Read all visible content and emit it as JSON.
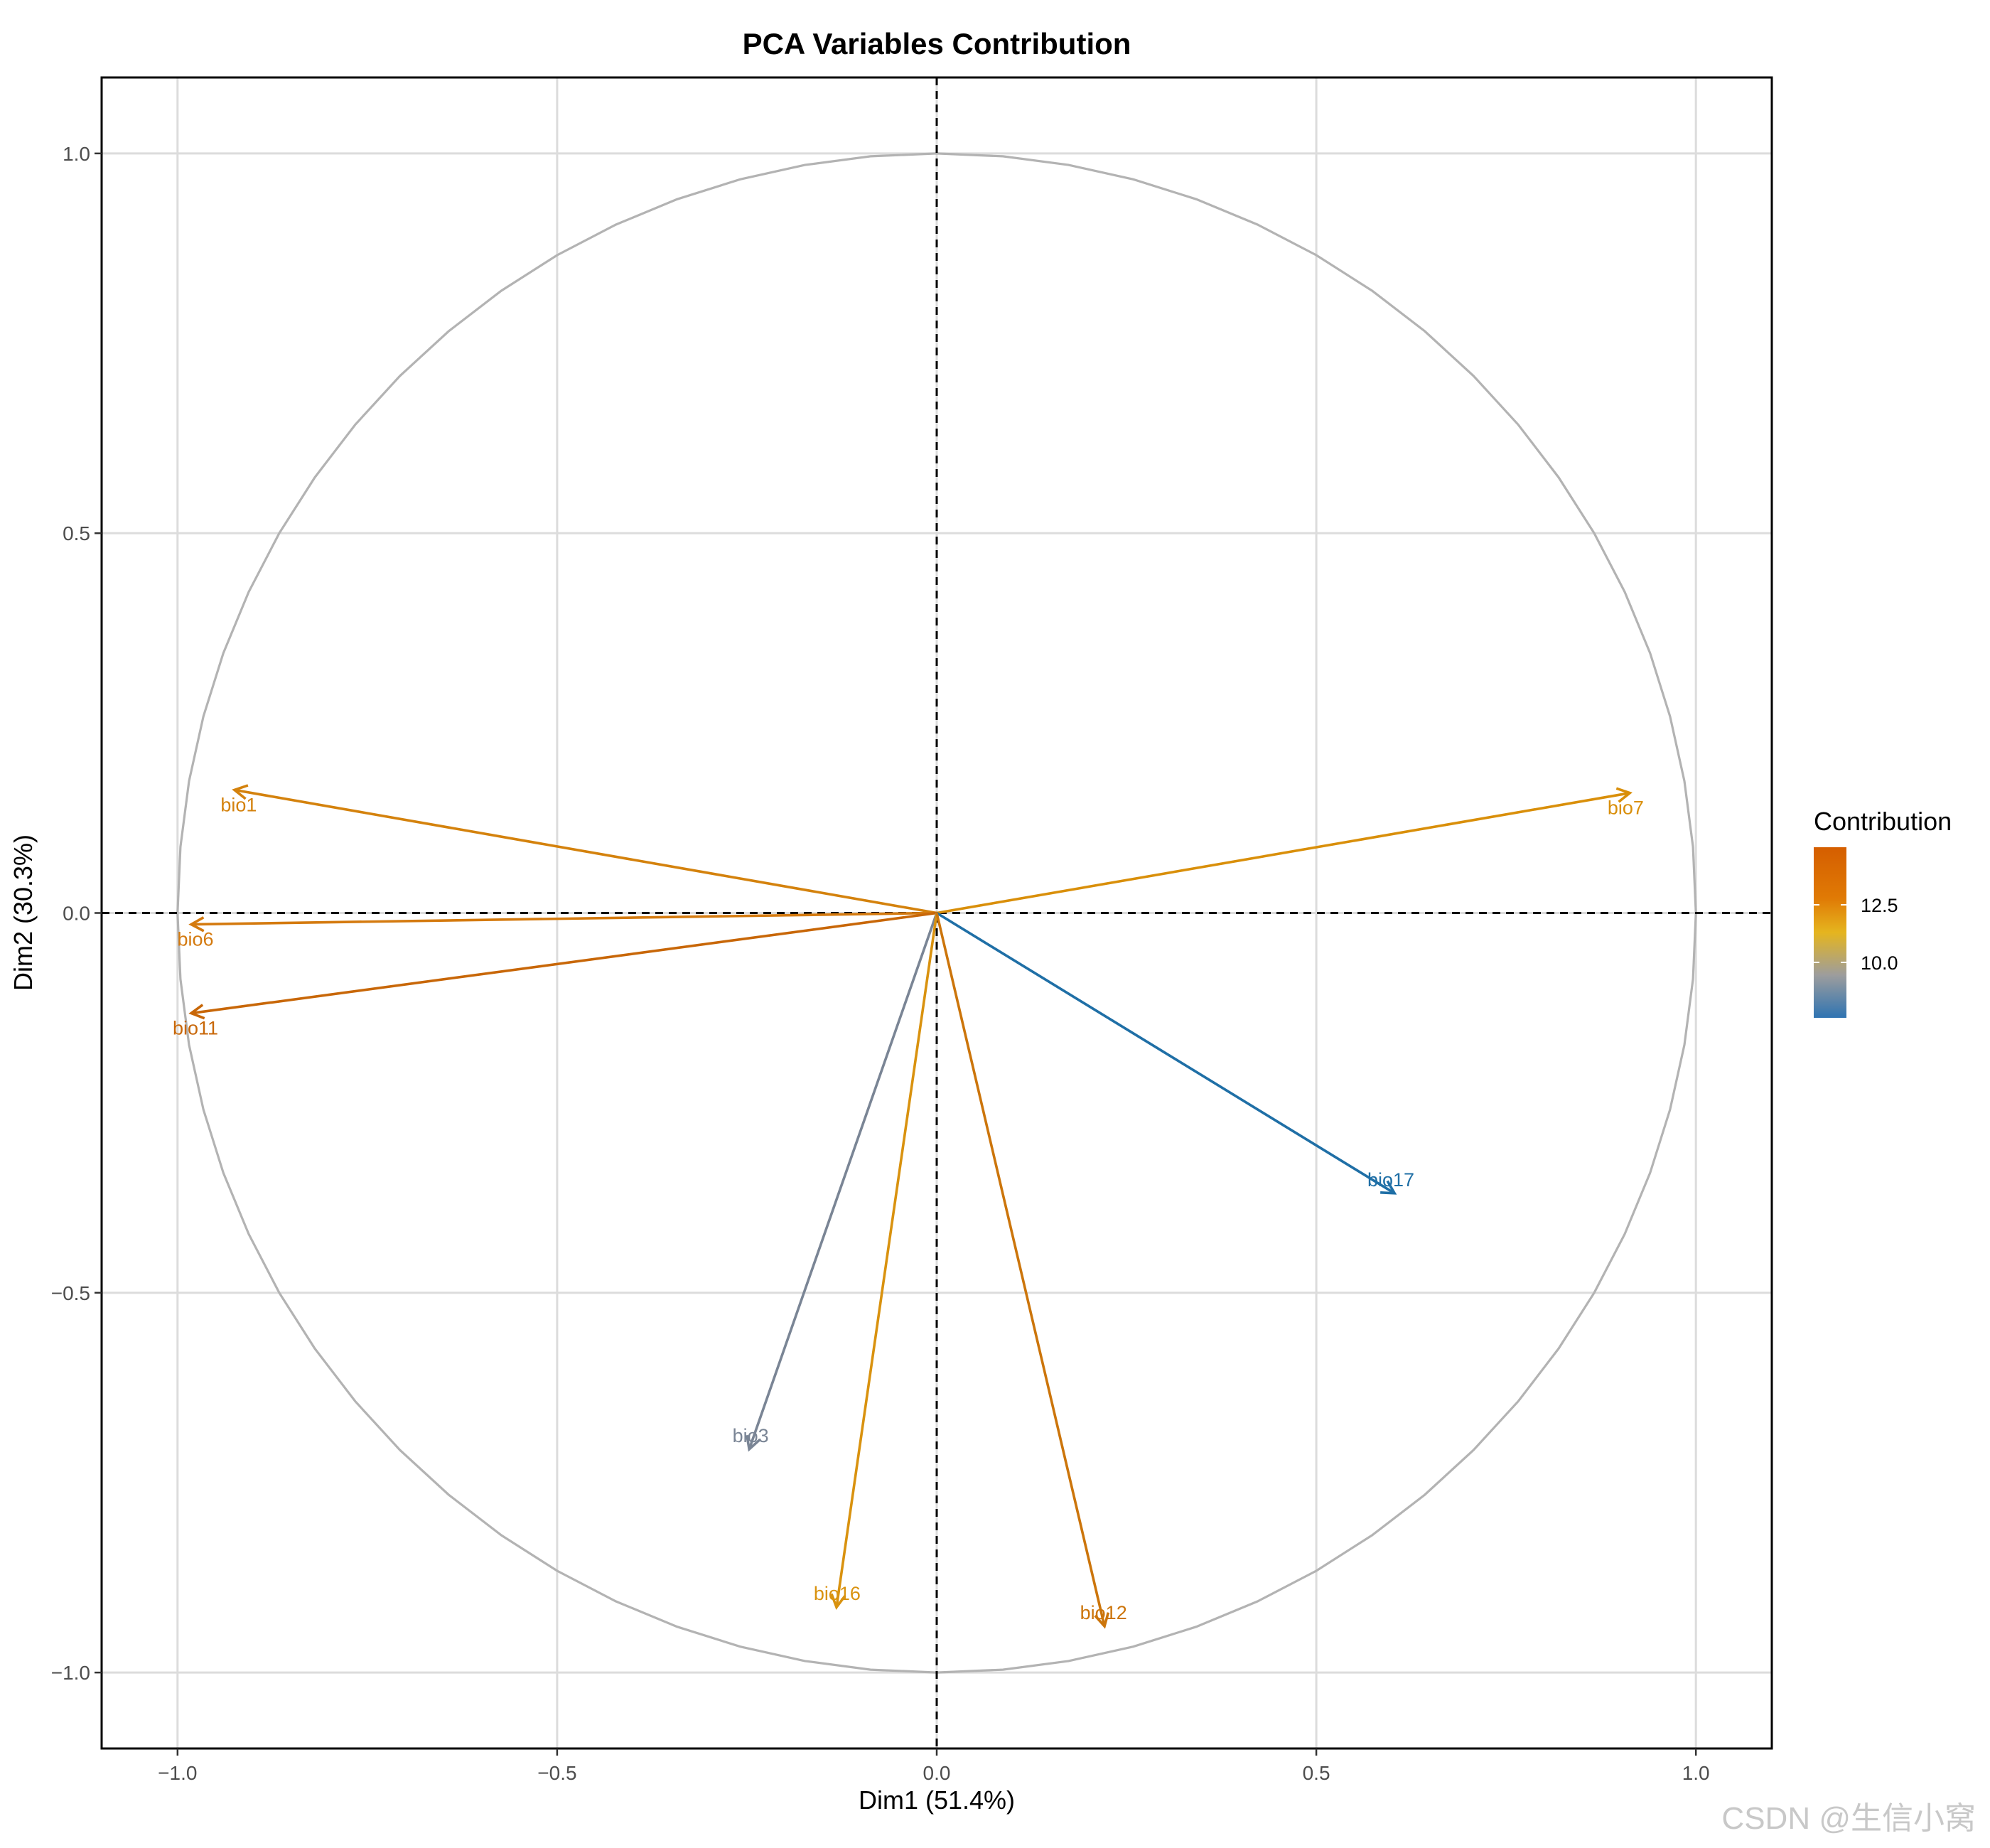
{
  "chart_data": {
    "type": "scatter",
    "title": "PCA Variables Contribution",
    "xlabel": "Dim1 (51.4%)",
    "ylabel": "Dim2 (30.3%)",
    "xlim": [
      -1.1,
      1.1
    ],
    "ylim": [
      -1.1,
      1.1
    ],
    "x_ticks": [
      -1.0,
      -0.5,
      0.0,
      0.5,
      1.0
    ],
    "x_tick_labels": [
      "−1.0",
      "−0.5",
      "0.0",
      "0.5",
      "1.0"
    ],
    "y_ticks": [
      1.0,
      0.5,
      0.0,
      -0.5,
      -1.0
    ],
    "y_tick_labels": [
      "1.0",
      "0.5",
      "0.0",
      "−0.5",
      "−1.0"
    ],
    "grid": true,
    "correlation_circle": true,
    "reference_lines": [
      0,
      0
    ],
    "variables": [
      {
        "name": "bio1",
        "x": -0.925,
        "y": 0.162,
        "color": "#d4820d"
      },
      {
        "name": "bio7",
        "x": 0.913,
        "y": 0.158,
        "color": "#d98f0a"
      },
      {
        "name": "bio6",
        "x": -0.982,
        "y": -0.015,
        "color": "#d47a0f"
      },
      {
        "name": "bio11",
        "x": -0.982,
        "y": -0.132,
        "color": "#c86708"
      },
      {
        "name": "bio17",
        "x": 0.603,
        "y": -0.369,
        "color": "#1f6fa6"
      },
      {
        "name": "bio3",
        "x": -0.247,
        "y": -0.706,
        "color": "#7a8595"
      },
      {
        "name": "bio16",
        "x": -0.132,
        "y": -0.914,
        "color": "#d9920f"
      },
      {
        "name": "bio12",
        "x": 0.221,
        "y": -0.939,
        "color": "#cc750b"
      }
    ],
    "legend": {
      "title": "Contribution",
      "position": "right",
      "ticks": [
        "12.5",
        "10.0"
      ],
      "gradient": [
        "#d55e00",
        "#e5b51f",
        "#9d9d9d",
        "#2f74b2"
      ]
    }
  },
  "watermark": "CSDN @生信小窝"
}
